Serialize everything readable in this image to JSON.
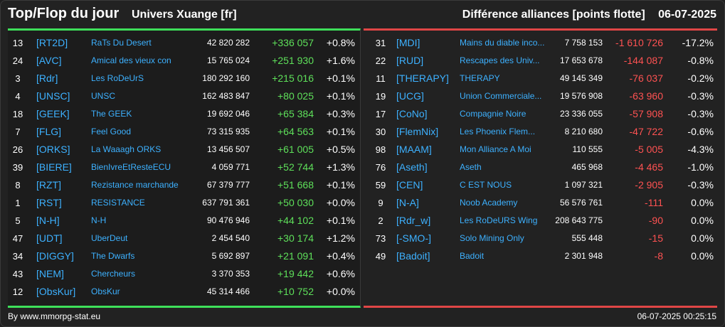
{
  "header": {
    "title": "Top/Flop du jour",
    "universe": "Univers Xuange [fr]",
    "subtitle": "Différence alliances [points flotte]",
    "date": "06-07-2025"
  },
  "colors": {
    "positive": "#5ee05a",
    "negative": "#ff5252",
    "link": "#3db1ff",
    "top_bar": "#3ee05a",
    "flop_bar": "#e04646"
  },
  "top": [
    {
      "rank": "13",
      "tag": "[RT2D]",
      "name": "RaTs Du Desert",
      "points": "42 820 282",
      "diff": "+336 057",
      "pct": "+0.8%"
    },
    {
      "rank": "24",
      "tag": "[AVC]",
      "name": "Amical des vieux con",
      "points": "15 765 024",
      "diff": "+251 930",
      "pct": "+1.6%"
    },
    {
      "rank": "3",
      "tag": "[Rdr]",
      "name": "Les RoDeUrS",
      "points": "180 292 160",
      "diff": "+215 016",
      "pct": "+0.1%"
    },
    {
      "rank": "4",
      "tag": "[UNSC]",
      "name": "UNSC",
      "points": "162 483 847",
      "diff": "+80 025",
      "pct": "+0.1%"
    },
    {
      "rank": "18",
      "tag": "[GEEK]",
      "name": "The GEEK",
      "points": "19 692 046",
      "diff": "+65 384",
      "pct": "+0.3%"
    },
    {
      "rank": "7",
      "tag": "[FLG]",
      "name": "Feel Good",
      "points": "73 315 935",
      "diff": "+64 563",
      "pct": "+0.1%"
    },
    {
      "rank": "26",
      "tag": "[ORKS]",
      "name": "La Waaagh ORKS",
      "points": "13 456 507",
      "diff": "+61 005",
      "pct": "+0.5%"
    },
    {
      "rank": "39",
      "tag": "[BIERE]",
      "name": "BienIvreEtResteECU",
      "points": "4 059 771",
      "diff": "+52 744",
      "pct": "+1.3%"
    },
    {
      "rank": "8",
      "tag": "[RZT]",
      "name": "Rezistance marchande",
      "points": "67 379 777",
      "diff": "+51 668",
      "pct": "+0.1%"
    },
    {
      "rank": "1",
      "tag": "[RST]",
      "name": "RESISTANCE",
      "points": "637 791 361",
      "diff": "+50 030",
      "pct": "+0.0%"
    },
    {
      "rank": "5",
      "tag": "[N-H]",
      "name": "N-H",
      "points": "90 476 946",
      "diff": "+44 102",
      "pct": "+0.1%"
    },
    {
      "rank": "47",
      "tag": "[UDT]",
      "name": "UberDeut",
      "points": "2 454 540",
      "diff": "+30 174",
      "pct": "+1.2%"
    },
    {
      "rank": "34",
      "tag": "[DIGGY]",
      "name": "The Dwarfs",
      "points": "5 692 897",
      "diff": "+21 091",
      "pct": "+0.4%"
    },
    {
      "rank": "43",
      "tag": "[NEM]",
      "name": "Chercheurs",
      "points": "3 370 353",
      "diff": "+19 442",
      "pct": "+0.6%"
    },
    {
      "rank": "12",
      "tag": "[ObsKur]",
      "name": "ObsKur",
      "points": "45 314 466",
      "diff": "+10 752",
      "pct": "+0.0%"
    }
  ],
  "flop": [
    {
      "rank": "31",
      "tag": "[MDI]",
      "name": "Mains du diable inco...",
      "points": "7 758 153",
      "diff": "-1 610 726",
      "pct": "-17.2%"
    },
    {
      "rank": "22",
      "tag": "[RUD]",
      "name": "Rescapes des Univ...",
      "points": "17 653 678",
      "diff": "-144 087",
      "pct": "-0.8%"
    },
    {
      "rank": "11",
      "tag": "[THERAPY]",
      "name": "THERAPY",
      "points": "49 145 349",
      "diff": "-76 037",
      "pct": "-0.2%"
    },
    {
      "rank": "19",
      "tag": "[UCG]",
      "name": "Union Commerciale...",
      "points": "19 576 908",
      "diff": "-63 960",
      "pct": "-0.3%"
    },
    {
      "rank": "17",
      "tag": "[CoNo]",
      "name": "Compagnie Noire",
      "points": "23 336 055",
      "diff": "-57 908",
      "pct": "-0.3%"
    },
    {
      "rank": "30",
      "tag": "[FlemNix]",
      "name": "Les Phoenix Flem...",
      "points": "8 210 680",
      "diff": "-47 722",
      "pct": "-0.6%"
    },
    {
      "rank": "98",
      "tag": "[MAAM]",
      "name": "Mon Alliance A Moi",
      "points": "110 555",
      "diff": "-5 005",
      "pct": "-4.3%"
    },
    {
      "rank": "76",
      "tag": "[Aseth]",
      "name": "Aseth",
      "points": "465 968",
      "diff": "-4 465",
      "pct": "-1.0%"
    },
    {
      "rank": "59",
      "tag": "[CEN]",
      "name": "C EST NOUS",
      "points": "1 097 321",
      "diff": "-2 905",
      "pct": "-0.3%"
    },
    {
      "rank": "9",
      "tag": "[N-A]",
      "name": "Noob Academy",
      "points": "56 576 761",
      "diff": "-111",
      "pct": "0.0%"
    },
    {
      "rank": "2",
      "tag": "[Rdr_w]",
      "name": "Les RoDeURS Wing",
      "points": "208 643 775",
      "diff": "-90",
      "pct": "0.0%"
    },
    {
      "rank": "73",
      "tag": "[-SMO-]",
      "name": "Solo Mining Only",
      "points": "555 448",
      "diff": "-15",
      "pct": "0.0%"
    },
    {
      "rank": "49",
      "tag": "[Badoit]",
      "name": "Badoit",
      "points": "2 301 948",
      "diff": "-8",
      "pct": "0.0%"
    }
  ],
  "footer": {
    "source": "By www.mmorpg-stat.eu",
    "timestamp": "06-07-2025 00:25:15"
  }
}
